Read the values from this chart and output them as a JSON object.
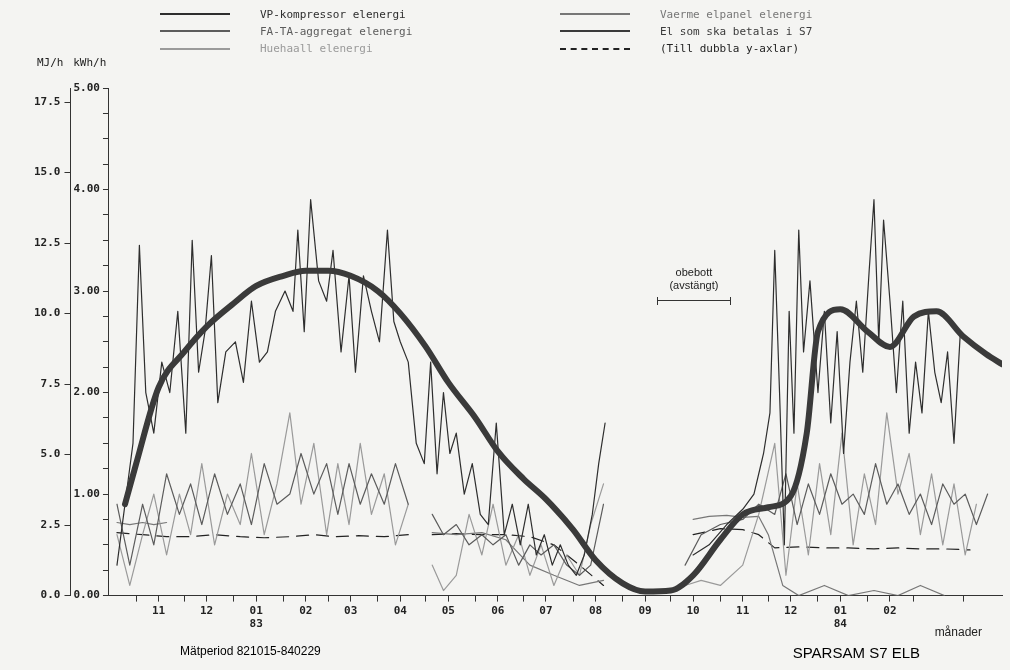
{
  "chart_data": {
    "type": "line",
    "xlabel": "månader",
    "ylabel": "kWh/h",
    "y2label": "MJ/h",
    "xlim": [
      "1982-10-15",
      "1984-04-25"
    ],
    "xticks": [
      {
        "value": "1982-11-01",
        "label": null
      },
      {
        "value": "1982-11-15",
        "label": "11"
      },
      {
        "value": "1982-12-01",
        "label": null
      },
      {
        "value": "1982-12-15",
        "label": "12"
      },
      {
        "value": "1983-01-01",
        "label": null
      },
      {
        "value": "1983-01-15",
        "label": "01\n83"
      },
      {
        "value": "1983-02-01",
        "label": null
      },
      {
        "value": "1983-02-15",
        "label": "02"
      },
      {
        "value": "1983-03-01",
        "label": null
      },
      {
        "value": "1983-03-15",
        "label": "03"
      },
      {
        "value": "1983-04-01",
        "label": null
      },
      {
        "value": "1983-04-15",
        "label": "04"
      },
      {
        "value": "1983-05-01",
        "label": null
      },
      {
        "value": "1983-05-15",
        "label": "05"
      },
      {
        "value": "1983-06-01",
        "label": null
      },
      {
        "value": "1983-06-15",
        "label": "06"
      },
      {
        "value": "1983-07-01",
        "label": null
      },
      {
        "value": "1983-07-15",
        "label": "07"
      },
      {
        "value": "1983-08-01",
        "label": null
      },
      {
        "value": "1983-08-15",
        "label": "08"
      },
      {
        "value": "1983-09-01",
        "label": null
      },
      {
        "value": "1983-09-15",
        "label": "09"
      },
      {
        "value": "1983-10-01",
        "label": null
      },
      {
        "value": "1983-10-15",
        "label": "10"
      },
      {
        "value": "1983-11-01",
        "label": null
      },
      {
        "value": "1983-11-15",
        "label": "11"
      },
      {
        "value": "1983-12-01",
        "label": null
      },
      {
        "value": "1983-12-15",
        "label": "12"
      },
      {
        "value": "1984-01-01",
        "label": null
      },
      {
        "value": "1984-01-15",
        "label": "01\n84"
      },
      {
        "value": "1984-02-01",
        "label": null
      },
      {
        "value": "1984-02-15",
        "label": "02"
      },
      {
        "value": "1984-03-01",
        "label": null
      },
      {
        "value": "1984-04-01",
        "label": null
      }
    ],
    "ylim": [
      0,
      5
    ],
    "yticks": [
      {
        "value": 0,
        "label": "0.00"
      },
      {
        "value": 0.25,
        "label": null
      },
      {
        "value": 0.5,
        "label": null
      },
      {
        "value": 0.75,
        "label": null
      },
      {
        "value": 1,
        "label": "1.00"
      },
      {
        "value": 1.25,
        "label": null
      },
      {
        "value": 1.5,
        "label": null
      },
      {
        "value": 1.75,
        "label": null
      },
      {
        "value": 2,
        "label": "2.00"
      },
      {
        "value": 2.25,
        "label": null
      },
      {
        "value": 2.5,
        "label": null
      },
      {
        "value": 2.75,
        "label": null
      },
      {
        "value": 3,
        "label": "3.00"
      },
      {
        "value": 3.25,
        "label": null
      },
      {
        "value": 3.5,
        "label": null
      },
      {
        "value": 3.75,
        "label": null
      },
      {
        "value": 4,
        "label": "4.00"
      },
      {
        "value": 4.25,
        "label": null
      },
      {
        "value": 4.5,
        "label": null
      },
      {
        "value": 4.75,
        "label": null
      },
      {
        "value": 5,
        "label": "5.00"
      }
    ],
    "y2lim": [
      0,
      18
    ],
    "y2ticks": [
      {
        "value": 0,
        "label": "0.0"
      },
      {
        "value": 2.5,
        "label": "2.5"
      },
      {
        "value": 5,
        "label": "5.0"
      },
      {
        "value": 7.5,
        "label": "7.5"
      },
      {
        "value": 10,
        "label": "10.0"
      },
      {
        "value": 12.5,
        "label": "12.5"
      },
      {
        "value": 15,
        "label": "15.0"
      },
      {
        "value": 17.5,
        "label": "17.5"
      }
    ],
    "grid": false,
    "legend": "top",
    "marker": "none",
    "annotations": [
      "obebott\n(avstängt)",
      "Mätperiod   821015-840229",
      "SPARSAM S7 ELB"
    ],
    "series": [
      {
        "name": "VP-kompressor elenergi",
        "color": "#2e2e2e",
        "line_style": "solid",
        "x": [
          "1982-10-20",
          "1982-10-25",
          "1982-10-30",
          "1982-11-03",
          "1982-11-07",
          "1982-11-12",
          "1982-11-17",
          "1982-11-22",
          "1982-11-27",
          "1982-12-02",
          "1982-12-06",
          "1982-12-10",
          "1982-12-14",
          "1982-12-18",
          "1982-12-22",
          "1982-12-27",
          "1983-01-02",
          "1983-01-07",
          "1983-01-12",
          "1983-01-17",
          "1983-01-22",
          "1983-01-27",
          "1983-02-02",
          "1983-02-07",
          "1983-02-10",
          "1983-02-14",
          "1983-02-18",
          "1983-02-23",
          "1983-02-28",
          "1983-03-04",
          "1983-03-09",
          "1983-03-14",
          "1983-03-18",
          "1983-03-23",
          "1983-03-28",
          "1983-04-02",
          "1983-04-07",
          "1983-04-11",
          "1983-04-15",
          "1983-04-20",
          "1983-04-25",
          "1983-04-30",
          "1983-05-04",
          "1983-05-08",
          "1983-05-12",
          "1983-05-16",
          "1983-05-20",
          "1983-05-25",
          "1983-05-30",
          "1983-06-04",
          "1983-06-09",
          "1983-06-14",
          "1983-06-19",
          "1983-06-24",
          "1983-06-29",
          "1983-07-04",
          "1983-07-09",
          "1983-07-14",
          "1983-07-19",
          "1983-07-24",
          "1983-07-29",
          "1983-08-03",
          "1983-08-08",
          "1983-08-13",
          "1983-08-17",
          "1983-08-21",
          "1983-08-24",
          "1983-10-15",
          "1983-10-25",
          "1983-11-05",
          "1983-11-15",
          "1983-11-22",
          "1983-11-28",
          "1983-12-02",
          "1983-12-05",
          "1983-12-08",
          "1983-12-11",
          "1983-12-14",
          "1983-12-17",
          "1983-12-20",
          "1983-12-23",
          "1983-12-27",
          "1984-01-01",
          "1984-01-05",
          "1984-01-09",
          "1984-01-13",
          "1984-01-17",
          "1984-01-21",
          "1984-01-25",
          "1984-01-29",
          "1984-02-02",
          "1984-02-05",
          "1984-02-08",
          "1984-02-11",
          "1984-02-15",
          "1984-02-19",
          "1984-02-23",
          "1984-02-27",
          "1984-03-02",
          "1984-03-06",
          "1984-03-10",
          "1984-03-14",
          "1984-03-18",
          "1984-03-22",
          "1984-03-26",
          "1984-03-30"
        ],
        "values": [
          0.3,
          0.9,
          1.5,
          3.45,
          2.0,
          1.6,
          2.3,
          2.0,
          2.8,
          1.6,
          3.5,
          2.2,
          2.6,
          3.35,
          1.9,
          2.4,
          2.5,
          2.1,
          2.9,
          2.3,
          2.4,
          2.8,
          3.0,
          2.8,
          3.6,
          2.6,
          3.9,
          3.1,
          2.9,
          3.4,
          2.4,
          3.15,
          2.2,
          3.15,
          2.8,
          2.5,
          3.6,
          2.7,
          2.5,
          2.3,
          1.5,
          1.3,
          2.3,
          1.2,
          2.0,
          1.4,
          1.6,
          1.0,
          1.3,
          0.8,
          0.7,
          1.7,
          0.6,
          0.9,
          0.5,
          0.9,
          0.4,
          0.6,
          0.3,
          0.5,
          0.3,
          0.2,
          0.4,
          0.8,
          1.3,
          1.7,
          null,
          0.4,
          0.5,
          0.7,
          0.85,
          1.0,
          1.4,
          1.8,
          3.4,
          2.0,
          0.5,
          2.8,
          1.6,
          3.6,
          2.4,
          3.1,
          2.0,
          2.8,
          1.7,
          2.6,
          1.4,
          2.3,
          2.9,
          2.2,
          3.2,
          3.9,
          2.5,
          3.7,
          2.9,
          2.0,
          2.9,
          1.6,
          2.3,
          1.8,
          2.8,
          2.2,
          1.9,
          2.4,
          1.5,
          2.6
        ]
      },
      {
        "name": "FA-TA-aggregat elenergi",
        "color": "#5c5c5c",
        "line_style": "solid",
        "x": [
          "1982-10-20",
          "1982-10-28",
          "1982-11-05",
          "1982-11-12",
          "1982-11-20",
          "1982-11-28",
          "1982-12-05",
          "1982-12-12",
          "1982-12-20",
          "1982-12-28",
          "1983-01-05",
          "1983-01-12",
          "1983-01-20",
          "1983-01-28",
          "1983-02-05",
          "1983-02-12",
          "1983-02-20",
          "1983-02-28",
          "1983-03-07",
          "1983-03-14",
          "1983-03-21",
          "1983-03-28",
          "1983-04-05",
          "1983-04-12",
          "1983-04-20",
          "1983-04-28",
          "1983-05-05",
          "1983-05-12",
          "1983-05-20",
          "1983-05-28",
          "1983-06-05",
          "1983-06-12",
          "1983-06-20",
          "1983-06-28",
          "1983-07-05",
          "1983-07-12",
          "1983-07-20",
          "1983-07-28",
          "1983-08-05",
          "1983-08-12",
          "1983-08-20",
          "1983-08-24",
          "1983-10-10",
          "1983-10-20",
          "1983-11-01",
          "1983-11-15",
          "1983-11-25",
          "1983-12-05",
          "1983-12-12",
          "1983-12-19",
          "1983-12-26",
          "1984-01-02",
          "1984-01-09",
          "1984-01-16",
          "1984-01-23",
          "1984-01-30",
          "1984-02-06",
          "1984-02-13",
          "1984-02-20",
          "1984-02-27",
          "1984-03-05",
          "1984-03-12",
          "1984-03-19",
          "1984-03-26",
          "1984-04-02",
          "1984-04-09",
          "1984-04-16"
        ],
        "values": [
          0.9,
          0.3,
          0.9,
          0.5,
          1.2,
          0.8,
          1.1,
          0.7,
          1.2,
          0.8,
          1.1,
          0.7,
          1.3,
          0.9,
          1.0,
          1.4,
          1.0,
          1.3,
          0.8,
          1.3,
          0.9,
          1.2,
          0.9,
          1.3,
          0.9,
          null,
          0.8,
          0.6,
          0.7,
          0.5,
          0.6,
          0.5,
          0.6,
          0.3,
          0.5,
          0.4,
          0.5,
          0.3,
          0.2,
          0.3,
          0.9,
          null,
          0.3,
          0.6,
          0.7,
          0.75,
          0.9,
          0.8,
          1.2,
          0.7,
          1.1,
          0.8,
          1.2,
          0.9,
          1.0,
          0.8,
          1.3,
          0.9,
          1.1,
          0.8,
          1.0,
          0.7,
          1.1,
          0.9,
          1.0,
          0.7,
          1.0
        ]
      },
      {
        "name": "Huehaall elenergi",
        "color": "#9a9a9a",
        "line_style": "solid",
        "x": [
          "1982-10-20",
          "1982-10-28",
          "1982-11-05",
          "1982-11-12",
          "1982-11-20",
          "1982-11-28",
          "1982-12-05",
          "1982-12-12",
          "1982-12-20",
          "1982-12-28",
          "1983-01-05",
          "1983-01-12",
          "1983-01-20",
          "1983-01-28",
          "1983-02-05",
          "1983-02-12",
          "1983-02-20",
          "1983-02-28",
          "1983-03-07",
          "1983-03-14",
          "1983-03-21",
          "1983-03-28",
          "1983-04-05",
          "1983-04-12",
          "1983-04-20",
          "1983-04-28",
          "1983-05-05",
          "1983-05-12",
          "1983-05-20",
          "1983-05-28",
          "1983-06-05",
          "1983-06-12",
          "1983-06-20",
          "1983-06-28",
          "1983-07-05",
          "1983-07-12",
          "1983-07-20",
          "1983-07-28",
          "1983-08-05",
          "1983-08-12",
          "1983-08-20",
          "1983-08-24",
          "1983-10-10",
          "1983-10-20",
          "1983-11-01",
          "1983-11-15",
          "1983-11-25",
          "1983-12-05",
          "1983-12-12",
          "1983-12-19",
          "1983-12-26",
          "1984-01-02",
          "1984-01-09",
          "1984-01-16",
          "1984-01-23",
          "1984-01-30",
          "1984-02-06",
          "1984-02-13",
          "1984-02-20",
          "1984-02-27",
          "1984-03-05",
          "1984-03-12",
          "1984-03-19",
          "1984-03-26",
          "1984-04-02",
          "1984-04-09"
        ],
        "values": [
          0.6,
          0.1,
          0.6,
          1.0,
          0.4,
          1.0,
          0.6,
          1.3,
          0.5,
          1.0,
          0.7,
          1.4,
          0.6,
          1.1,
          1.8,
          0.9,
          1.5,
          0.6,
          1.3,
          0.7,
          1.5,
          0.8,
          1.2,
          0.5,
          0.9,
          null,
          0.3,
          0.05,
          0.2,
          0.8,
          0.4,
          0.9,
          0.3,
          0.6,
          0.2,
          0.5,
          0.1,
          0.4,
          0.2,
          0.7,
          1.1,
          null,
          0.1,
          0.15,
          0.1,
          0.3,
          0.8,
          1.5,
          0.2,
          1.1,
          0.4,
          1.3,
          0.6,
          1.6,
          0.5,
          1.2,
          0.7,
          1.8,
          1.0,
          1.4,
          0.6,
          1.2,
          0.5,
          1.1,
          0.4,
          0.9
        ]
      },
      {
        "name": "Vaerme elpanel elenergi",
        "color": "#777777",
        "line_style": "solid",
        "x": [
          "1982-10-20",
          "1982-10-28",
          "1982-11-05",
          "1982-11-12",
          "1982-11-20",
          "1982-11-28",
          "1983-05-05",
          "1983-05-20",
          "1983-06-05",
          "1983-06-20",
          "1983-07-05",
          "1983-07-20",
          "1983-08-05",
          "1983-08-20",
          "1983-08-24",
          "1983-10-15",
          "1983-10-25",
          "1983-11-05",
          "1983-11-15",
          "1983-11-25",
          "1983-12-01",
          "1983-12-10",
          "1983-12-20",
          "1984-01-05",
          "1984-01-20",
          "1984-02-05",
          "1984-02-20",
          "1984-03-05",
          "1984-03-20"
        ],
        "values": [
          0.72,
          0.7,
          0.72,
          0.7,
          0.72,
          null,
          0.62,
          0.6,
          0.62,
          0.55,
          0.3,
          0.2,
          0.1,
          0.15,
          null,
          0.75,
          0.78,
          0.79,
          0.77,
          0.78,
          0.6,
          0.1,
          0.0,
          0.1,
          0.0,
          0.05,
          0.0,
          0.1,
          0.0
        ]
      },
      {
        "name": "El som ska betalas i S7",
        "color": "#3a3a3a",
        "line_style": "solid",
        "x": [
          "1982-10-25",
          "1982-11-01",
          "1982-11-15",
          "1982-12-01",
          "1982-12-15",
          "1983-01-01",
          "1983-01-15",
          "1983-02-01",
          "1983-02-15",
          "1983-03-01",
          "1983-03-15",
          "1983-04-01",
          "1983-04-15",
          "1983-05-01",
          "1983-05-15",
          "1983-06-01",
          "1983-06-15",
          "1983-07-01",
          "1983-07-15",
          "1983-08-01",
          "1983-08-15",
          "1983-09-01",
          "1983-09-15",
          "1983-10-01",
          "1983-10-15",
          "1983-11-01",
          "1983-11-15",
          "1983-12-01",
          "1983-12-15",
          "1983-12-25",
          "1984-01-01",
          "1984-01-15",
          "1984-02-01",
          "1984-02-15",
          "1984-03-01",
          "1984-03-15",
          "1984-04-01",
          "1984-04-15",
          "1984-04-25"
        ],
        "values": [
          0.9,
          1.3,
          2.05,
          2.4,
          2.65,
          2.88,
          3.05,
          3.15,
          3.2,
          3.2,
          3.15,
          3.0,
          2.78,
          2.45,
          2.1,
          1.75,
          1.42,
          1.15,
          0.95,
          0.65,
          0.35,
          0.12,
          0.04,
          0.05,
          0.2,
          0.55,
          0.8,
          0.87,
          0.98,
          1.6,
          2.6,
          2.82,
          2.6,
          2.45,
          2.75,
          2.8,
          2.55,
          2.38,
          2.28
        ]
      },
      {
        "name": "(Till dubbla y-axlar)",
        "color": "#222222",
        "line_style": "dashed",
        "x": [
          "1982-10-20",
          "1982-11-05",
          "1982-11-20",
          "1982-12-05",
          "1982-12-20",
          "1983-01-05",
          "1983-01-20",
          "1983-02-05",
          "1983-02-20",
          "1983-03-05",
          "1983-03-20",
          "1983-04-05",
          "1983-04-20",
          "1983-04-28",
          "1983-05-05",
          "1983-05-20",
          "1983-06-05",
          "1983-06-20",
          "1983-07-05",
          "1983-07-20",
          "1983-08-05",
          "1983-08-20",
          "1983-08-24",
          "1983-10-15",
          "1983-11-01",
          "1983-11-15",
          "1983-11-25",
          "1983-12-05",
          "1983-12-20",
          "1984-01-05",
          "1984-01-20",
          "1984-02-05",
          "1984-02-20",
          "1984-03-05",
          "1984-03-20",
          "1984-04-05"
        ],
        "values": [
          0.62,
          0.6,
          0.58,
          0.58,
          0.6,
          0.58,
          0.57,
          0.58,
          0.6,
          0.58,
          0.59,
          0.58,
          0.6,
          null,
          0.6,
          0.61,
          0.6,
          0.6,
          0.58,
          0.5,
          0.3,
          0.1,
          null,
          0.6,
          0.66,
          0.65,
          0.6,
          0.47,
          0.48,
          0.47,
          0.47,
          0.46,
          0.47,
          0.46,
          0.46,
          0.45
        ]
      }
    ]
  }
}
